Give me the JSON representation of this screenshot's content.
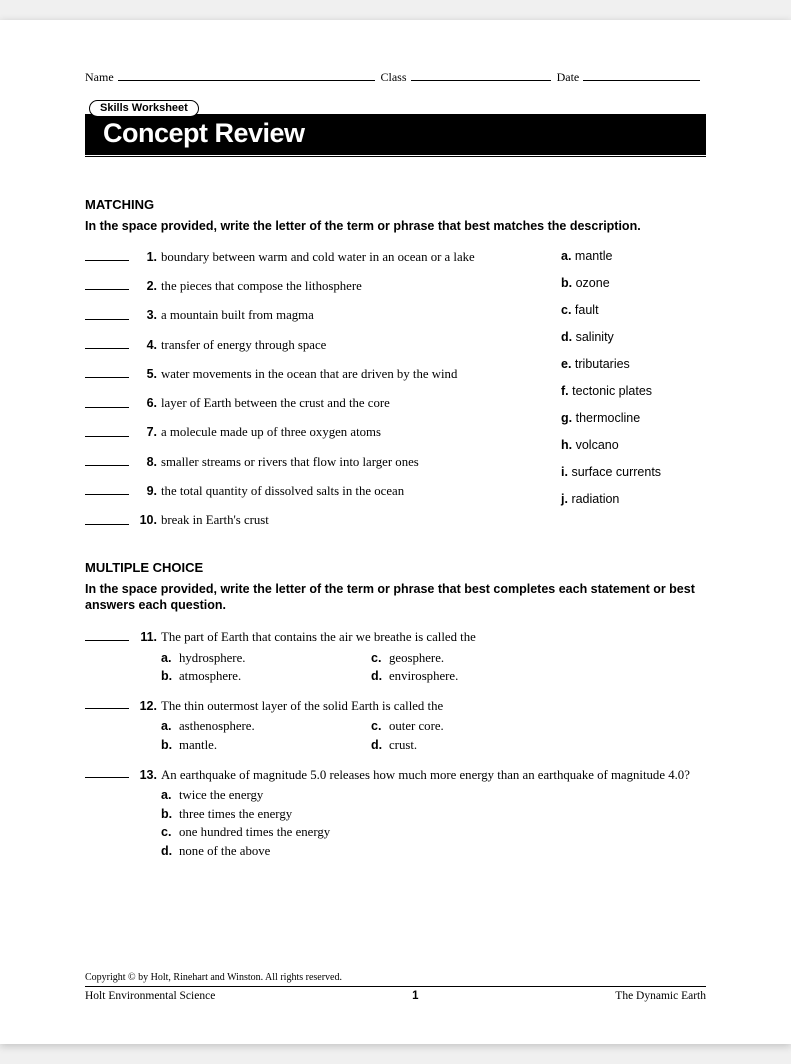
{
  "header": {
    "name_label": "Name",
    "class_label": "Class",
    "date_label": "Date"
  },
  "skills_tag": "Skills Worksheet",
  "title": "Concept Review",
  "matching": {
    "heading": "MATCHING",
    "instructions": "In the space provided, write the letter of the term or phrase that best matches the description.",
    "questions": [
      {
        "num": "1.",
        "text": "boundary between warm and cold water in an ocean or a lake"
      },
      {
        "num": "2.",
        "text": "the pieces that compose the lithosphere"
      },
      {
        "num": "3.",
        "text": "a mountain built from magma"
      },
      {
        "num": "4.",
        "text": "transfer of energy through space"
      },
      {
        "num": "5.",
        "text": "water movements in the ocean that are driven by the wind"
      },
      {
        "num": "6.",
        "text": "layer of Earth between the crust and the core"
      },
      {
        "num": "7.",
        "text": "a molecule made up of three oxygen atoms"
      },
      {
        "num": "8.",
        "text": "smaller streams or rivers that flow into larger ones"
      },
      {
        "num": "9.",
        "text": "the total quantity of dissolved salts in the ocean"
      },
      {
        "num": "10.",
        "text": "break in Earth's crust"
      }
    ],
    "terms": [
      {
        "letter": "a.",
        "term": "mantle"
      },
      {
        "letter": "b.",
        "term": "ozone"
      },
      {
        "letter": "c.",
        "term": "fault"
      },
      {
        "letter": "d.",
        "term": "salinity"
      },
      {
        "letter": "e.",
        "term": "tributaries"
      },
      {
        "letter": "f.",
        "term": "tectonic plates"
      },
      {
        "letter": "g.",
        "term": "thermocline"
      },
      {
        "letter": "h.",
        "term": "volcano"
      },
      {
        "letter": "i.",
        "term": "surface currents"
      },
      {
        "letter": "j.",
        "term": "radiation"
      }
    ]
  },
  "mc": {
    "heading": "MULTIPLE CHOICE",
    "instructions": "In the space provided, write the letter of the term or phrase that best completes each statement or best answers each question.",
    "items": [
      {
        "num": "11.",
        "stem": "The part of Earth that contains the air we breathe is called the",
        "layout": "2col",
        "choices": [
          {
            "letter": "a.",
            "text": "hydrosphere."
          },
          {
            "letter": "b.",
            "text": "atmosphere."
          },
          {
            "letter": "c.",
            "text": "geosphere."
          },
          {
            "letter": "d.",
            "text": "envirosphere."
          }
        ]
      },
      {
        "num": "12.",
        "stem": "The thin outermost layer of the solid Earth is called the",
        "layout": "2col",
        "choices": [
          {
            "letter": "a.",
            "text": "asthenosphere."
          },
          {
            "letter": "b.",
            "text": "mantle."
          },
          {
            "letter": "c.",
            "text": "outer core."
          },
          {
            "letter": "d.",
            "text": "crust."
          }
        ]
      },
      {
        "num": "13.",
        "stem": "An earthquake of magnitude 5.0 releases how much more energy than an earthquake of magnitude 4.0?",
        "layout": "1col",
        "choices": [
          {
            "letter": "a.",
            "text": "twice the energy"
          },
          {
            "letter": "b.",
            "text": "three times the energy"
          },
          {
            "letter": "c.",
            "text": "one hundred times the energy"
          },
          {
            "letter": "d.",
            "text": "none of the above"
          }
        ]
      }
    ]
  },
  "footer": {
    "copyright": "Copyright © by Holt, Rinehart and Winston. All rights reserved.",
    "left": "Holt Environmental Science",
    "page": "1",
    "right": "The Dynamic Earth"
  }
}
